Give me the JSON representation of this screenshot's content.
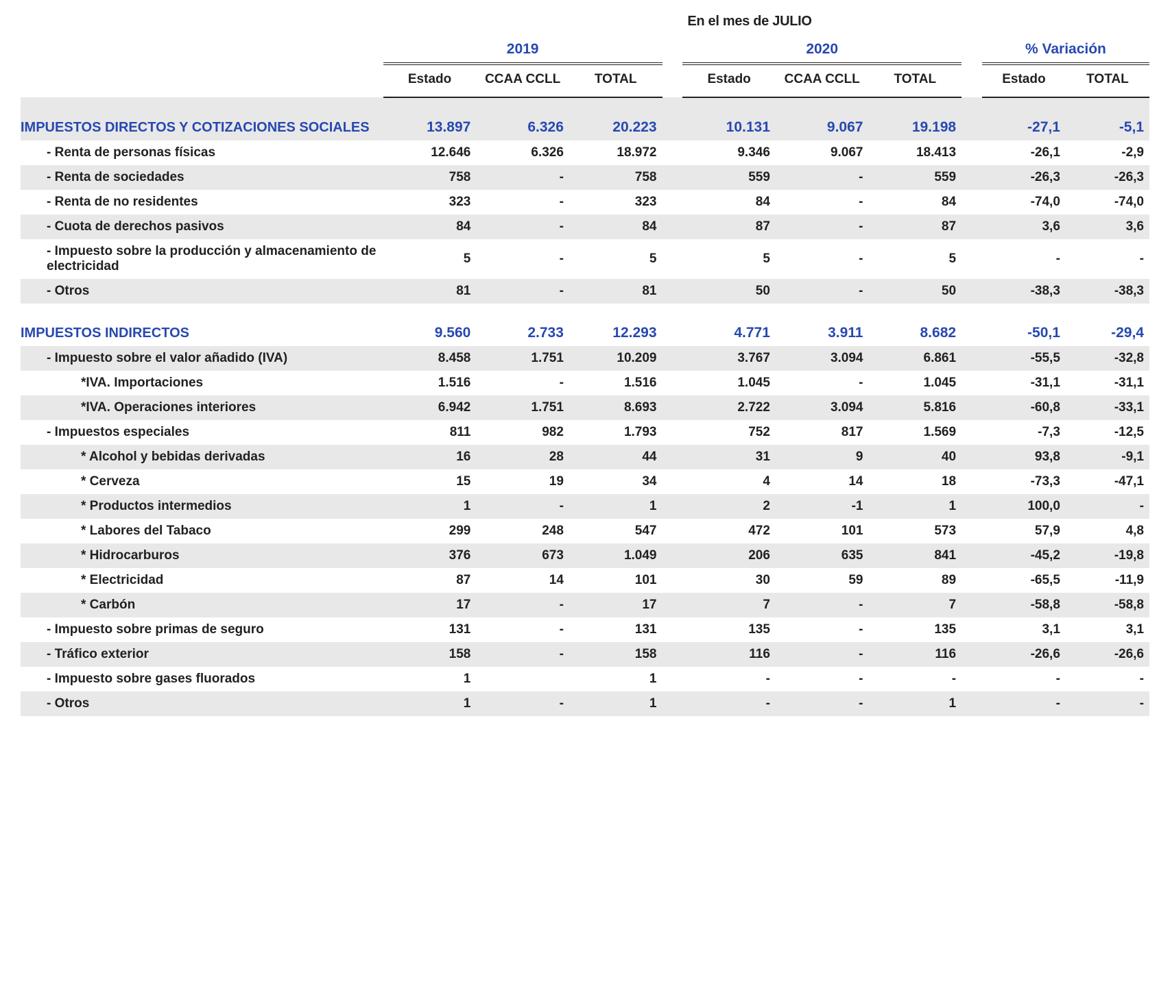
{
  "title": "En el mes de JULIO",
  "header": {
    "group_2019": "2019",
    "group_2020": "2020",
    "group_var": "% Variación",
    "sub_estado": "Estado",
    "sub_ccaa": "CCAA CCLL",
    "sub_total": "TOTAL"
  },
  "sections": [
    {
      "title": "IMPUESTOS DIRECTOS Y COTIZACIONES SOCIALES",
      "values": [
        "13.897",
        "6.326",
        "20.223",
        "10.131",
        "9.067",
        "19.198",
        "-27,1",
        "-5,1"
      ],
      "rows": [
        {
          "label": "- Renta de personas físicas",
          "v": [
            "12.646",
            "6.326",
            "18.972",
            "9.346",
            "9.067",
            "18.413",
            "-26,1",
            "-2,9"
          ]
        },
        {
          "label": "- Renta de sociedades",
          "v": [
            "758",
            "-",
            "758",
            "559",
            "-",
            "559",
            "-26,3",
            "-26,3"
          ]
        },
        {
          "label": "- Renta de no residentes",
          "v": [
            "323",
            "-",
            "323",
            "84",
            "-",
            "84",
            "-74,0",
            "-74,0"
          ]
        },
        {
          "label": "- Cuota de derechos pasivos",
          "v": [
            "84",
            "-",
            "84",
            "87",
            "-",
            "87",
            "3,6",
            "3,6"
          ]
        },
        {
          "label": "- Impuesto sobre la producción y almacenamiento de electricidad",
          "v": [
            "5",
            "-",
            "5",
            "5",
            "-",
            "5",
            "-",
            "-"
          ]
        },
        {
          "label": "- Otros",
          "v": [
            "81",
            "-",
            "81",
            "50",
            "-",
            "50",
            "-38,3",
            "-38,3"
          ]
        }
      ]
    },
    {
      "title": "IMPUESTOS INDIRECTOS",
      "values": [
        "9.560",
        "2.733",
        "12.293",
        "4.771",
        "3.911",
        "8.682",
        "-50,1",
        "-29,4"
      ],
      "rows": [
        {
          "label": "- Impuesto sobre el valor añadido (IVA)",
          "v": [
            "8.458",
            "1.751",
            "10.209",
            "3.767",
            "3.094",
            "6.861",
            "-55,5",
            "-32,8"
          ]
        },
        {
          "label": "*IVA. Importaciones",
          "indent": 2,
          "v": [
            "1.516",
            "-",
            "1.516",
            "1.045",
            "-",
            "1.045",
            "-31,1",
            "-31,1"
          ]
        },
        {
          "label": "*IVA. Operaciones interiores",
          "indent": 2,
          "v": [
            "6.942",
            "1.751",
            "8.693",
            "2.722",
            "3.094",
            "5.816",
            "-60,8",
            "-33,1"
          ]
        },
        {
          "label": "- Impuestos especiales",
          "v": [
            "811",
            "982",
            "1.793",
            "752",
            "817",
            "1.569",
            "-7,3",
            "-12,5"
          ]
        },
        {
          "label": "* Alcohol y bebidas derivadas",
          "indent": 2,
          "v": [
            "16",
            "28",
            "44",
            "31",
            "9",
            "40",
            "93,8",
            "-9,1"
          ]
        },
        {
          "label": "* Cerveza",
          "indent": 2,
          "v": [
            "15",
            "19",
            "34",
            "4",
            "14",
            "18",
            "-73,3",
            "-47,1"
          ]
        },
        {
          "label": "* Productos intermedios",
          "indent": 2,
          "v": [
            "1",
            "-",
            "1",
            "2",
            "-1",
            "1",
            "100,0",
            "-"
          ]
        },
        {
          "label": "* Labores del Tabaco",
          "indent": 2,
          "v": [
            "299",
            "248",
            "547",
            "472",
            "101",
            "573",
            "57,9",
            "4,8"
          ]
        },
        {
          "label": "* Hidrocarburos",
          "indent": 2,
          "v": [
            "376",
            "673",
            "1.049",
            "206",
            "635",
            "841",
            "-45,2",
            "-19,8"
          ]
        },
        {
          "label": "* Electricidad",
          "indent": 2,
          "v": [
            "87",
            "14",
            "101",
            "30",
            "59",
            "89",
            "-65,5",
            "-11,9"
          ]
        },
        {
          "label": "* Carbón",
          "indent": 2,
          "v": [
            "17",
            "-",
            "17",
            "7",
            "-",
            "7",
            "-58,8",
            "-58,8"
          ]
        },
        {
          "label": "- Impuesto sobre primas de seguro",
          "v": [
            "131",
            "-",
            "131",
            "135",
            "-",
            "135",
            "3,1",
            "3,1"
          ]
        },
        {
          "label": "- Tráfico exterior",
          "v": [
            "158",
            "-",
            "158",
            "116",
            "-",
            "116",
            "-26,6",
            "-26,6"
          ]
        },
        {
          "label": "- Impuesto sobre gases fluorados",
          "v": [
            "1",
            "",
            "1",
            "-",
            "-",
            "-",
            "-",
            "-"
          ]
        },
        {
          "label": "- Otros",
          "v": [
            "1",
            "-",
            "1",
            "-",
            "-",
            "1",
            "-",
            "-"
          ]
        }
      ]
    }
  ],
  "colors": {
    "accent": "#2748b0",
    "text": "#212121",
    "zebra": "#e8e8e8",
    "background": "#ffffff"
  }
}
